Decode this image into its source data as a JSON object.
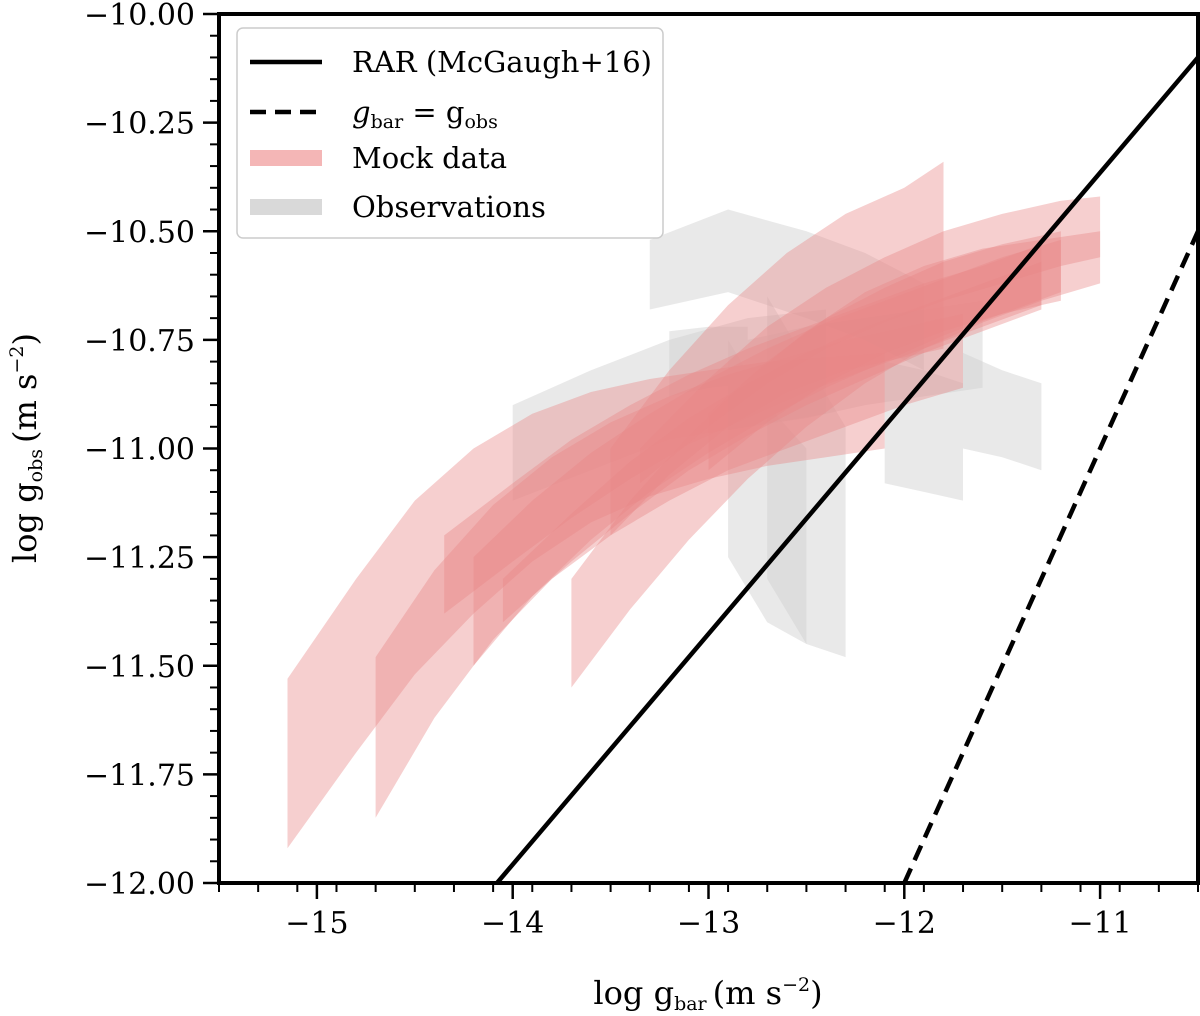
{
  "chart_data": {
    "type": "area",
    "title": "",
    "xlabel": {
      "prefix": "log g",
      "sub": "bar",
      "units": "(m s",
      "exp": "−2",
      "close": ")"
    },
    "ylabel": {
      "prefix": "log g",
      "sub": "obs",
      "units": "(m s",
      "exp": "−2",
      "close": ")"
    },
    "xlim": [
      -15.5,
      -10.5
    ],
    "ylim": [
      -12.0,
      -10.0
    ],
    "x_ticks": [
      -15,
      -14,
      -13,
      -12,
      -11
    ],
    "x_tick_labels": [
      "−15",
      "−14",
      "−13",
      "−12",
      "−11"
    ],
    "y_ticks": [
      -12.0,
      -11.75,
      -11.5,
      -11.25,
      -11.0,
      -10.75,
      -10.5,
      -10.25,
      -10.0
    ],
    "y_tick_labels": [
      "−12.00",
      "−11.75",
      "−11.50",
      "−11.25",
      "−11.00",
      "−10.75",
      "−10.50",
      "−10.25",
      "−10.00"
    ],
    "legend": {
      "position": "top-left",
      "entries": [
        {
          "label": "RAR (McGaugh+16)",
          "style": "solid-line",
          "color": "#000000"
        },
        {
          "label_main": "g",
          "label_sub": "bar",
          "label_mid": " = g",
          "label_sub2": "obs",
          "style": "dashed-line",
          "color": "#000000"
        },
        {
          "label": "Mock data",
          "style": "band",
          "color": "#f4b6b6"
        },
        {
          "label": "Observations",
          "style": "band",
          "color": "#d9d9d9"
        }
      ]
    },
    "lines": [
      {
        "name": "RAR (McGaugh+16)",
        "style": "solid",
        "x": [
          -14.08,
          -10.5
        ],
        "y": [
          -12.0,
          -10.1
        ]
      },
      {
        "name": "g_bar = g_obs",
        "style": "dashed",
        "x": [
          -12.0,
          -10.5
        ],
        "y": [
          -12.0,
          -10.5
        ]
      }
    ],
    "series": [
      {
        "name": "Observations",
        "color": "#cfcfcf",
        "opacity": 0.45,
        "bands": [
          {
            "x": [
              -13.3,
              -12.9,
              -12.5,
              -12.2,
              -11.9
            ],
            "upper": [
              -10.52,
              -10.45,
              -10.5,
              -10.55,
              -10.62
            ],
            "lower": [
              -10.68,
              -10.64,
              -10.7,
              -10.75,
              -10.82
            ]
          },
          {
            "x": [
              -14.0,
              -13.6,
              -13.2,
              -12.8,
              -12.4
            ],
            "upper": [
              -10.9,
              -10.82,
              -10.75,
              -10.7,
              -10.68
            ],
            "lower": [
              -11.12,
              -11.05,
              -10.98,
              -10.95,
              -10.92
            ]
          },
          {
            "x": [
              -12.8,
              -12.5,
              -12.2,
              -11.9,
              -11.6
            ],
            "upper": [
              -10.75,
              -10.72,
              -10.7,
              -10.68,
              -10.66
            ],
            "lower": [
              -10.95,
              -10.93,
              -10.9,
              -10.88,
              -10.86
            ]
          },
          {
            "x": [
              -12.9,
              -12.7,
              -12.5
            ],
            "upper": [
              -10.75,
              -10.9,
              -11.0
            ],
            "lower": [
              -11.25,
              -11.4,
              -11.45
            ]
          },
          {
            "x": [
              -12.7,
              -12.5,
              -12.3
            ],
            "upper": [
              -10.65,
              -10.8,
              -10.95
            ],
            "lower": [
              -11.3,
              -11.45,
              -11.48
            ]
          },
          {
            "x": [
              -12.1,
              -11.9,
              -11.7
            ],
            "upper": [
              -10.8,
              -10.82,
              -10.85
            ],
            "lower": [
              -11.08,
              -11.1,
              -11.12
            ]
          },
          {
            "x": [
              -11.7,
              -11.5,
              -11.3
            ],
            "upper": [
              -10.78,
              -10.82,
              -10.85
            ],
            "lower": [
              -11.0,
              -11.02,
              -11.05
            ]
          },
          {
            "x": [
              -13.2,
              -13.0,
              -12.8
            ],
            "upper": [
              -10.73,
              -10.72,
              -10.72
            ],
            "lower": [
              -10.88,
              -10.86,
              -10.85
            ]
          }
        ]
      },
      {
        "name": "Mock data",
        "color": "#e88888",
        "opacity": 0.4,
        "bands": [
          {
            "x": [
              -15.15,
              -14.8,
              -14.5,
              -14.2,
              -13.9,
              -13.6,
              -13.3,
              -13.0,
              -12.7,
              -12.4,
              -12.1
            ],
            "upper": [
              -11.53,
              -11.3,
              -11.12,
              -11.0,
              -10.92,
              -10.87,
              -10.84,
              -10.82,
              -10.8,
              -10.79,
              -10.78
            ],
            "lower": [
              -11.92,
              -11.7,
              -11.52,
              -11.38,
              -11.26,
              -11.17,
              -11.11,
              -11.07,
              -11.04,
              -11.02,
              -11.0
            ]
          },
          {
            "x": [
              -14.7,
              -14.4,
              -14.1,
              -13.8,
              -13.5,
              -13.2,
              -12.9,
              -12.6,
              -12.3,
              -12.0,
              -11.7
            ],
            "upper": [
              -11.48,
              -11.28,
              -11.13,
              -11.02,
              -10.94,
              -10.88,
              -10.83,
              -10.79,
              -10.75,
              -10.72,
              -10.69
            ],
            "lower": [
              -11.85,
              -11.62,
              -11.44,
              -11.3,
              -11.2,
              -11.12,
              -11.05,
              -11.0,
              -10.95,
              -10.9,
              -10.86
            ]
          },
          {
            "x": [
              -14.35,
              -14.0,
              -13.7,
              -13.4,
              -13.1,
              -12.8,
              -12.5,
              -12.2,
              -11.9,
              -11.6,
              -11.3
            ],
            "upper": [
              -11.2,
              -11.08,
              -10.98,
              -10.9,
              -10.83,
              -10.77,
              -10.72,
              -10.67,
              -10.62,
              -10.58,
              -10.53
            ],
            "lower": [
              -11.38,
              -11.26,
              -11.16,
              -11.07,
              -10.99,
              -10.93,
              -10.87,
              -10.82,
              -10.77,
              -10.72,
              -10.67
            ]
          },
          {
            "x": [
              -14.2,
              -13.9,
              -13.6,
              -13.3,
              -13.0,
              -12.7,
              -12.4,
              -12.1,
              -11.8,
              -11.5,
              -11.2
            ],
            "upper": [
              -11.25,
              -11.12,
              -11.01,
              -10.92,
              -10.84,
              -10.77,
              -10.71,
              -10.66,
              -10.61,
              -10.56,
              -10.52
            ],
            "lower": [
              -11.5,
              -11.34,
              -11.21,
              -11.1,
              -11.01,
              -10.93,
              -10.86,
              -10.8,
              -10.74,
              -10.69,
              -10.64
            ]
          },
          {
            "x": [
              -14.05,
              -13.7,
              -13.4,
              -13.1,
              -12.8,
              -12.5,
              -12.2,
              -11.9,
              -11.6,
              -11.3
            ],
            "upper": [
              -11.3,
              -11.15,
              -11.03,
              -10.93,
              -10.85,
              -10.78,
              -10.72,
              -10.67,
              -10.62,
              -10.57
            ],
            "lower": [
              -11.4,
              -11.26,
              -11.15,
              -11.05,
              -10.97,
              -10.9,
              -10.84,
              -10.78,
              -10.73,
              -10.68
            ]
          },
          {
            "x": [
              -13.7,
              -13.4,
              -13.1,
              -12.8,
              -12.5,
              -12.2,
              -11.9,
              -11.6,
              -11.3,
              -11.0
            ],
            "upper": [
              -11.3,
              -11.12,
              -10.97,
              -10.84,
              -10.73,
              -10.64,
              -10.58,
              -10.54,
              -10.52,
              -10.5
            ],
            "lower": [
              -11.55,
              -11.37,
              -11.21,
              -11.07,
              -10.95,
              -10.85,
              -10.77,
              -10.71,
              -10.66,
              -10.62
            ]
          },
          {
            "x": [
              -13.35,
              -13.0,
              -12.7,
              -12.4,
              -12.1,
              -11.8,
              -11.5,
              -11.2,
              -11.0
            ],
            "upper": [
              -11.0,
              -10.84,
              -10.72,
              -10.63,
              -10.56,
              -10.5,
              -10.46,
              -10.43,
              -10.42
            ],
            "lower": [
              -11.08,
              -10.95,
              -10.85,
              -10.77,
              -10.71,
              -10.66,
              -10.62,
              -10.58,
              -10.56
            ]
          },
          {
            "x": [
              -13.5,
              -13.2,
              -12.9,
              -12.6,
              -12.3,
              -12.0,
              -11.8
            ],
            "upper": [
              -11.0,
              -10.82,
              -10.67,
              -10.55,
              -10.46,
              -10.4,
              -10.34
            ],
            "lower": [
              -11.2,
              -11.06,
              -10.95,
              -10.87,
              -10.82,
              -10.79,
              -10.77
            ]
          },
          {
            "x": [
              -13.0,
              -12.7,
              -12.4,
              -12.1,
              -11.8,
              -11.5,
              -11.2
            ],
            "upper": [
              -10.92,
              -10.8,
              -10.7,
              -10.63,
              -10.57,
              -10.53,
              -10.5
            ],
            "lower": [
              -11.05,
              -10.94,
              -10.85,
              -10.78,
              -10.73,
              -10.69,
              -10.66
            ]
          }
        ]
      }
    ]
  }
}
